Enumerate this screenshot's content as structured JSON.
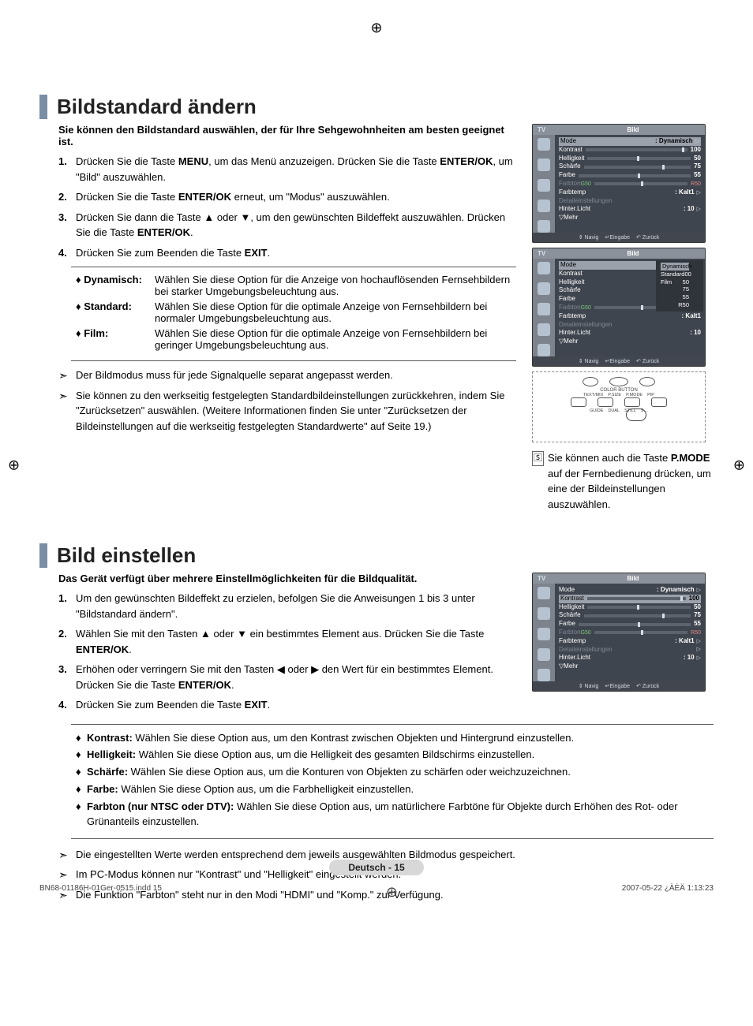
{
  "cropmarks": {
    "glyph": "⊕"
  },
  "section1": {
    "title": "Bildstandard ändern",
    "intro": "Sie können den Bildstandard auswählen, der für Ihre Sehgewohnheiten am besten geeignet ist.",
    "steps": [
      {
        "num": "1.",
        "html": "Drücken Sie die Taste <b>MENU</b>, um das Menü anzuzeigen. Drücken Sie die Taste <b>ENTER/OK</b>, um \"Bild\" auszuwählen."
      },
      {
        "num": "2.",
        "html": "Drücken Sie die Taste <b>ENTER/OK</b> erneut, um \"Modus\" auszuwählen."
      },
      {
        "num": "3.",
        "html": "Drücken Sie dann die Taste ▲ oder ▼, um den gewünschten Bildeffekt auszuwählen. Drücken Sie die Taste <b>ENTER/OK</b>."
      },
      {
        "num": "4.",
        "html": "Drücken Sie zum Beenden die Taste <b>EXIT</b>."
      }
    ],
    "modes": [
      {
        "label": "Dynamisch:",
        "desc": "Wählen Sie diese Option für die Anzeige von hochauflösenden Fernsehbildern bei starker Umgebungsbeleuchtung aus."
      },
      {
        "label": "Standard:",
        "desc": "Wählen Sie diese Option für die optimale Anzeige von Fernsehbildern bei normaler Umgebungsbeleuchtung aus."
      },
      {
        "label": "Film:",
        "desc": "Wählen Sie diese Option für die optimale Anzeige von Fernsehbildern bei geringer Umgebungsbeleuchtung aus."
      }
    ],
    "notes": [
      "Der Bildmodus muss für jede Signalquelle separat angepasst werden.",
      "Sie können zu den werkseitig festgelegten Standardbildeinstellungen zurückkehren, indem Sie \"Zurücksetzen\" auswählen. (Weitere Informationen finden Sie unter \"Zurücksetzen der Bildeinstellungen auf die werkseitig festgelegten Standardwerte\" auf Seite 19.)"
    ],
    "pmode_html": "Sie können auch die Taste <b>P.MODE</b> auf der Fernbedienung drücken, um eine der Bildeinstellungen auszuwählen."
  },
  "section2": {
    "title": "Bild einstellen",
    "intro": "Das Gerät verfügt über mehrere Einstellmöglichkeiten für die Bildqualität.",
    "steps": [
      {
        "num": "1.",
        "html": "Um den gewünschten Bildeffekt zu erzielen, befolgen Sie die Anweisungen 1 bis 3 unter \"Bildstandard ändern\"."
      },
      {
        "num": "2.",
        "html": "Wählen Sie mit den Tasten ▲ oder ▼ ein bestimmtes Element aus. Drücken Sie die Taste <b>ENTER/OK</b>."
      },
      {
        "num": "3.",
        "html": "Erhöhen oder verringern Sie mit den Tasten ◀ oder ▶ den Wert für ein bestimmtes Element. Drücken Sie die Taste <b>ENTER/OK</b>."
      },
      {
        "num": "4.",
        "html": "Drücken Sie zum Beenden die Taste <b>EXIT</b>."
      }
    ],
    "bullets": [
      {
        "label": "Kontrast:",
        "desc": " Wählen Sie diese Option aus, um den Kontrast zwischen Objekten und Hintergrund einzustellen."
      },
      {
        "label": "Helligkeit:",
        "desc": " Wählen Sie diese Option aus, um die Helligkeit des gesamten Bildschirms einzustellen."
      },
      {
        "label": "Schärfe:",
        "desc": " Wählen Sie diese Option aus, um die Konturen von Objekten zu schärfen oder weichzuzeichnen."
      },
      {
        "label": "Farbe:",
        "desc": " Wählen Sie diese Option aus, um die Farbhelligkeit einzustellen."
      },
      {
        "label": "Farbton (nur NTSC oder DTV):",
        "desc": " Wählen Sie diese Option aus, um natürlichere Farbtöne für Objekte durch Erhöhen des Rot- oder Grünanteils einzustellen."
      }
    ],
    "notes": [
      "Die eingestellten Werte werden entsprechend dem jeweils ausgewählten Bildmodus gespeichert.",
      "Im PC-Modus können nur \"Kontrast\" und \"Helligkeit\" eingestellt werden.",
      "Die Funktion \"Farbton\" steht nur in den Modi \"HDMI\" und \"Komp.\" zur Verfügung."
    ]
  },
  "osd": {
    "tv": "TV",
    "title": "Bild",
    "rows": {
      "mode": "Mode",
      "mode_val": ": Dynamisch",
      "kontrast": "Kontrast",
      "kontrast_val": "100",
      "helligkeit": "Helligkeit",
      "helligkeit_val": "50",
      "schaerfe": "Schärfe",
      "schaerfe_val": "75",
      "farbe": "Farbe",
      "farbe_val": "55",
      "farbton": "Farbton",
      "farbton_g": "G50",
      "farbton_r": "R50",
      "farbtemp": "Farbtemp",
      "farbtemp_val": ": Kalt1",
      "detail": "Detaileinstellungen",
      "hinterlicht": "Hinter.Licht",
      "hinterlicht_val": ": 10",
      "mehr": "▽Mehr"
    },
    "popup": {
      "dyn": "Dynamisch",
      "std": "Standard",
      "film": "Film",
      "std_val": "00",
      "p50": "50",
      "p75": "75",
      "p55": "55",
      "r50": "R50"
    },
    "footer": {
      "navig": "Navig",
      "eingabe": "Eingabe",
      "zurueck": "Zurück",
      "updown": "⇕",
      "enter": "↵",
      "back": "↶"
    }
  },
  "remote": {
    "color": "COLOR BUTTON",
    "row1": [
      "TEXT/MIX",
      "P.SIZE",
      "P.MODE",
      "PIP"
    ],
    "row2": [
      "GUIDE",
      "DUAL",
      "STILL",
      "S…"
    ]
  },
  "footer": {
    "pagelabel": "Deutsch - 15",
    "indd_left": "BN68-01186H-01Ger-0515.indd   15",
    "indd_right": "2007-05-22   ¿ÀÈÄ 1:13:23"
  },
  "colors": {
    "accent_bar": "#7a8fa6",
    "osd_bg": "#3f454e",
    "osd_frame": "#6b7179",
    "osd_header": "#8a919a",
    "osd_highlight": "#9aa1ab",
    "page_bg": "#ffffff",
    "footer_pill": "#d8d8d8"
  }
}
